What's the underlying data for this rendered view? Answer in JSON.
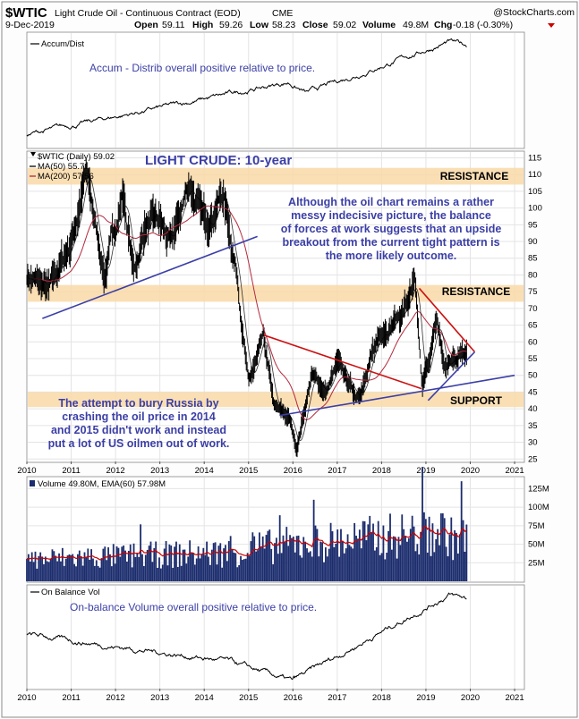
{
  "header": {
    "symbol": "$WTIC",
    "name": "Light Crude Oil - Continuous Contract (EOD)",
    "exchange": "CME",
    "watermark": "@StockCharts.com",
    "date": "9-Dec-2019",
    "open_label": "Open",
    "open": "59.11",
    "high_label": "High",
    "high": "59.26",
    "low_label": "Low",
    "low": "58.23",
    "close_label": "Close",
    "close": "59.02",
    "volume_label": "Volume",
    "volume": "49.8M",
    "chg_label": "Chg",
    "chg": "-0.18 (-0.30%)",
    "chg_color": "#cc0000"
  },
  "accum": {
    "legend": "Accum/Dist",
    "note": "Accum - Distrib overall positive relative to price."
  },
  "price": {
    "legend_main": "$WTIC (Daily) 59.02",
    "legend_ma50": "MA(50) 55.71",
    "legend_ma200": "MA(200) 57.56",
    "ma50_color": "#000000",
    "ma200_color": "#b3283c",
    "title": "LIGHT CRUDE: 10-year",
    "commentary": [
      "Although the oil chart remains a rather",
      "messy indecisive picture, the balance",
      "of forces at work suggests that an upside",
      "breakout from the current tight pattern is",
      "the more likely outcome."
    ],
    "russia_note": [
      "The attempt to bury Russia by",
      "crashing the oil price in 2014",
      "and 2015 didn't work and instead",
      "put a lot of US oilmen out of work."
    ],
    "zone_color": "#f9d9a8",
    "zones": [
      {
        "label": "RESISTANCE",
        "from": 107,
        "to": 112
      },
      {
        "label": "RESISTANCE",
        "from": 72,
        "to": 77
      },
      {
        "label": "SUPPORT",
        "from": 40.5,
        "to": 45
      }
    ],
    "y_ticks": [
      25,
      30,
      35,
      40,
      45,
      50,
      55,
      60,
      65,
      70,
      75,
      80,
      85,
      90,
      95,
      100,
      105,
      110,
      115
    ]
  },
  "volume": {
    "legend": "Volume 49.80M, EMA(60) 57.98M",
    "bar_color": "#1c2d6e",
    "ema_color": "#cc0000",
    "y_ticks": [
      "25M",
      "50M",
      "75M",
      "100M",
      "125M"
    ]
  },
  "obv": {
    "legend": "On Balance Vol",
    "note": "On-balance Volume overall positive relative to price."
  },
  "x_axis": {
    "ticks": [
      "2010",
      "2011",
      "2012",
      "2013",
      "2014",
      "2015",
      "2016",
      "2017",
      "2018",
      "2019",
      "2020",
      "2021"
    ]
  },
  "chart_data": {
    "type": "line",
    "title": "LIGHT CRUDE: 10-year",
    "x": [
      "2010-01",
      "2010-07",
      "2011-01",
      "2011-05",
      "2011-10",
      "2012-03",
      "2012-06",
      "2012-09",
      "2013-01",
      "2013-04",
      "2013-09",
      "2014-01",
      "2014-06",
      "2014-10",
      "2015-01",
      "2015-05",
      "2015-08",
      "2015-12",
      "2016-02",
      "2016-06",
      "2016-10",
      "2017-01",
      "2017-06",
      "2017-09",
      "2018-01",
      "2018-06",
      "2018-10",
      "2018-12",
      "2019-04",
      "2019-06",
      "2019-09",
      "2019-12"
    ],
    "series": [
      {
        "name": "$WTIC",
        "values": [
          80,
          75,
          90,
          110,
          80,
          105,
          80,
          95,
          95,
          88,
          108,
          95,
          105,
          80,
          47,
          60,
          40,
          37,
          28,
          50,
          45,
          53,
          44,
          50,
          64,
          68,
          76,
          45,
          66,
          52,
          55,
          59
        ]
      }
    ],
    "ylim": [
      24,
      117
    ],
    "xlim": [
      "2010",
      "2021"
    ]
  }
}
